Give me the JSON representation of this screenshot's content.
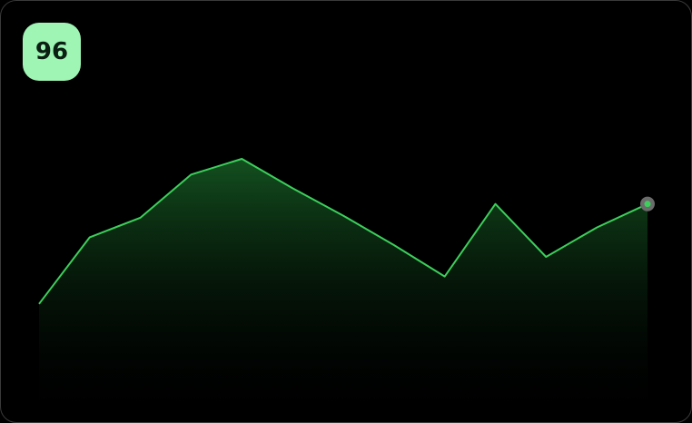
{
  "badge": {
    "value": "96",
    "background": "#9ef5b4",
    "text_color": "#0b1f12"
  },
  "colors": {
    "line": "#3ccf5c",
    "fill_top": "#1a6b2a",
    "endpoint_halo": "#6b6b6b",
    "endpoint_dot": "#3ccf5c",
    "background": "#000000"
  },
  "chart_data": {
    "type": "area",
    "title": "",
    "xlabel": "",
    "ylabel": "",
    "grid": false,
    "legend": "none",
    "x": [
      0,
      1,
      2,
      3,
      4,
      5,
      6,
      7,
      8,
      9,
      10,
      11,
      12
    ],
    "ylim": [
      0,
      100
    ],
    "series": [
      {
        "name": "value",
        "values": [
          26,
          60,
          70,
          92,
          100,
          85,
          71,
          56,
          40,
          77,
          50,
          65,
          77
        ]
      }
    ],
    "endpoint_marker": true
  }
}
